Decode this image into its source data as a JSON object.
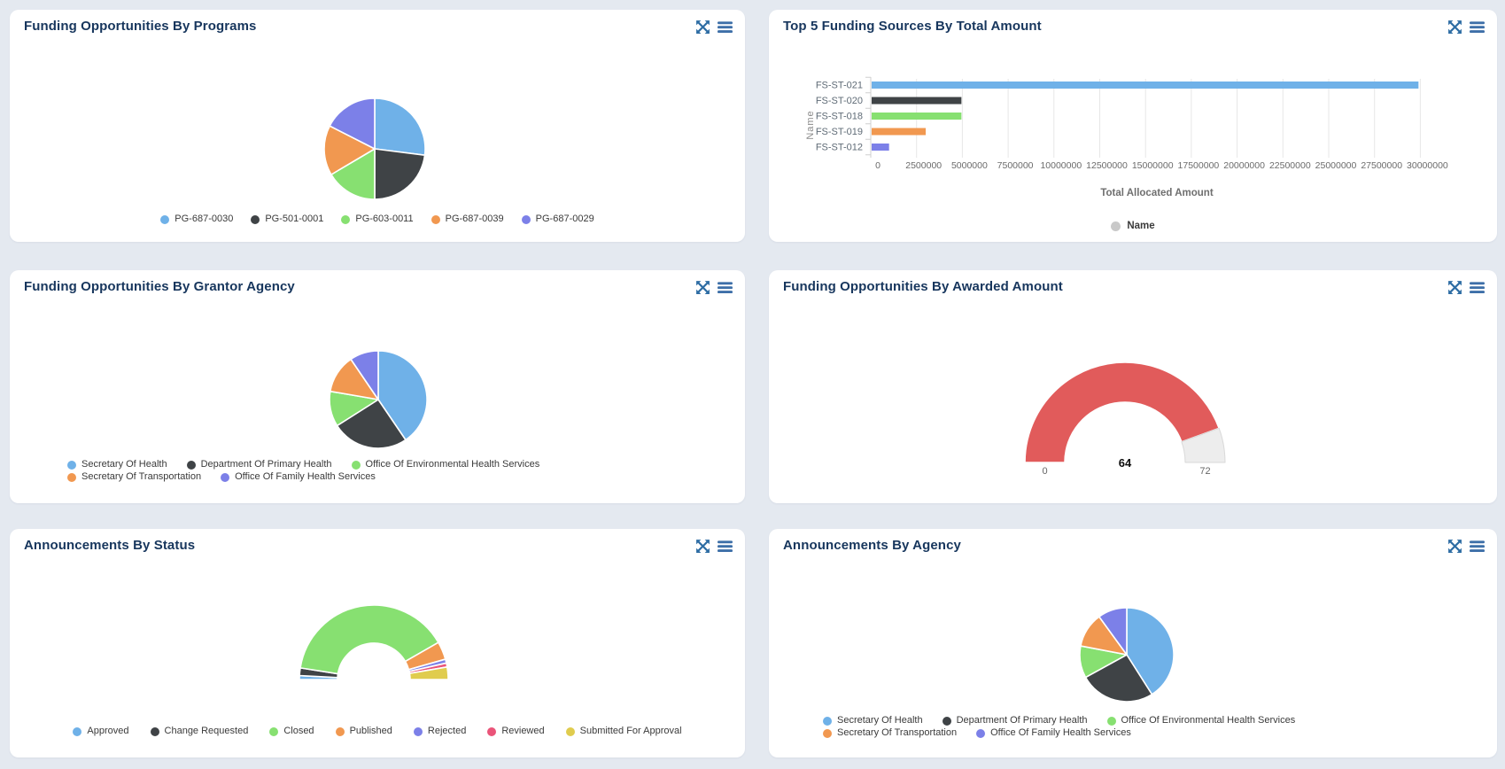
{
  "page": {
    "background_color": "#e4e9f0",
    "panel_color": "#ffffff",
    "title_color": "#17365d",
    "header_icons": [
      {
        "name": "expand-arrows-icon",
        "color": "#2e6da4"
      },
      {
        "name": "menu-icon",
        "color": "#3d6fa8"
      }
    ]
  },
  "chart_data": [
    {
      "type": "pie",
      "title": "Funding Opportunities By Programs",
      "labels": [
        "PG-687-0030",
        "PG-501-0001",
        "PG-603-0011",
        "PG-687-0039",
        "PG-687-0029"
      ],
      "values": [
        27,
        23,
        16.5,
        16,
        17.5
      ],
      "value_unit": "percent_of_pie_estimated",
      "colors": [
        "#6fb1e8",
        "#3f4346",
        "#87e071",
        "#f19850",
        "#7c80e8"
      ],
      "legend_position": "bottom"
    },
    {
      "type": "bar",
      "orientation": "horizontal",
      "title": "Top 5 Funding Sources By Total Amount",
      "categories": [
        "FS-ST-021",
        "FS-ST-020",
        "FS-ST-018",
        "FS-ST-019",
        "FS-ST-012"
      ],
      "values": [
        29900000,
        4950000,
        4950000,
        3000000,
        1000000
      ],
      "colors": [
        "#6fb1e8",
        "#3f4346",
        "#87e071",
        "#f19850",
        "#7c80e8"
      ],
      "xlabel": "Total Allocated Amount",
      "ylabel": "Name",
      "xlim": [
        0,
        31300000
      ],
      "xticks": [
        0,
        2500000,
        5000000,
        7500000,
        10000000,
        12500000,
        15000000,
        17500000,
        20000000,
        22500000,
        25000000,
        27500000,
        30000000
      ],
      "grid": true,
      "series_legend": {
        "label": "Name",
        "color": "#c9c9c9"
      },
      "legend_position": "bottom"
    },
    {
      "type": "pie",
      "title": "Funding Opportunities By Grantor Agency",
      "labels": [
        "Secretary Of Health",
        "Department Of Primary Health",
        "Office Of Environmental Health Services",
        "Secretary Of Transportation",
        "Office Of Family Health Services"
      ],
      "values": [
        40.5,
        25.5,
        11.7,
        12.8,
        9.5
      ],
      "value_unit": "percent_of_pie_estimated",
      "colors": [
        "#6fb1e8",
        "#3f4346",
        "#87e071",
        "#f19850",
        "#7c80e8"
      ],
      "legend_position": "bottom"
    },
    {
      "type": "gauge",
      "title": "Funding Opportunities By Awarded Amount",
      "value": 64,
      "min": 0,
      "max": 72,
      "value_label": "64",
      "min_label": "0",
      "max_label": "72",
      "color": "#e15b5b",
      "track_color": "#ededed"
    },
    {
      "type": "half_donut",
      "title": "Announcements By Status",
      "labels": [
        "Approved",
        "Change Requested",
        "Closed",
        "Published",
        "Rejected",
        "Reviewed",
        "Submitted For Approval"
      ],
      "values": [
        1.7,
        3.3,
        78.4,
        7.8,
        1.7,
        1.7,
        5.4
      ],
      "value_unit": "percent_of_semicircle_estimated",
      "colors": [
        "#6fb1e8",
        "#3f4346",
        "#87e071",
        "#f19850",
        "#7c80e8",
        "#ea5479",
        "#e0cc4e"
      ],
      "legend_position": "bottom"
    },
    {
      "type": "pie",
      "title": "Announcements By Agency",
      "labels": [
        "Secretary Of Health",
        "Department Of Primary Health",
        "Office Of Environmental Health Services",
        "Secretary Of Transportation",
        "Office Of Family Health Services"
      ],
      "values": [
        41,
        26,
        11,
        12,
        10
      ],
      "value_unit": "percent_of_pie_estimated",
      "colors": [
        "#6fb1e8",
        "#3f4346",
        "#87e071",
        "#f19850",
        "#7c80e8"
      ],
      "legend_position": "bottom"
    }
  ]
}
